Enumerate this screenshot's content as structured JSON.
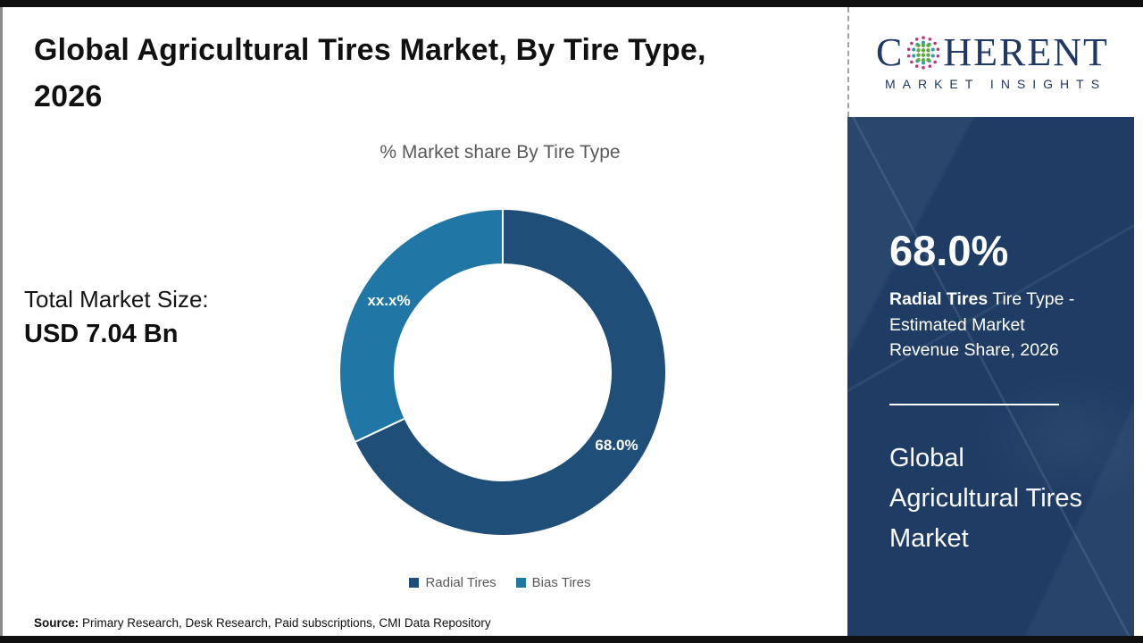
{
  "header": {
    "title": "Global Agricultural Tires Market, By Tire Type,\n2026"
  },
  "totals": {
    "label": "Total Market Size:",
    "value": "USD 7.04 Bn"
  },
  "source": {
    "label": "Source:",
    "text": " Primary Research, Desk Research, Paid subscriptions, CMI Data Repository"
  },
  "logo": {
    "word_start": "C",
    "word_end": "HERENT",
    "tagline": "MARKET INSIGHTS",
    "text_color": "#1f3864",
    "dot_colors": {
      "green": "#5fa844",
      "teal": "#2e9bb3",
      "magenta": "#c03379"
    }
  },
  "sidebar": {
    "stat_value": "68.0%",
    "stat_highlight": "Radial Tires",
    "stat_rest": " Tire Type - Estimated Market Revenue Share, 2026",
    "market_name": "Global Agricultural Tires Market",
    "background_color": "#1e3c64"
  },
  "chart_data": {
    "type": "pie",
    "donut": true,
    "title": "% Market share By Tire Type",
    "categories": [
      "Radial Tires",
      "Bias Tires"
    ],
    "values": [
      68,
      32
    ],
    "display_labels": [
      "68.0%",
      "xx.x%"
    ],
    "colors": [
      "#1f4e79",
      "#2077a6"
    ],
    "legend_position": "bottom",
    "label_color": "#ffffff"
  }
}
